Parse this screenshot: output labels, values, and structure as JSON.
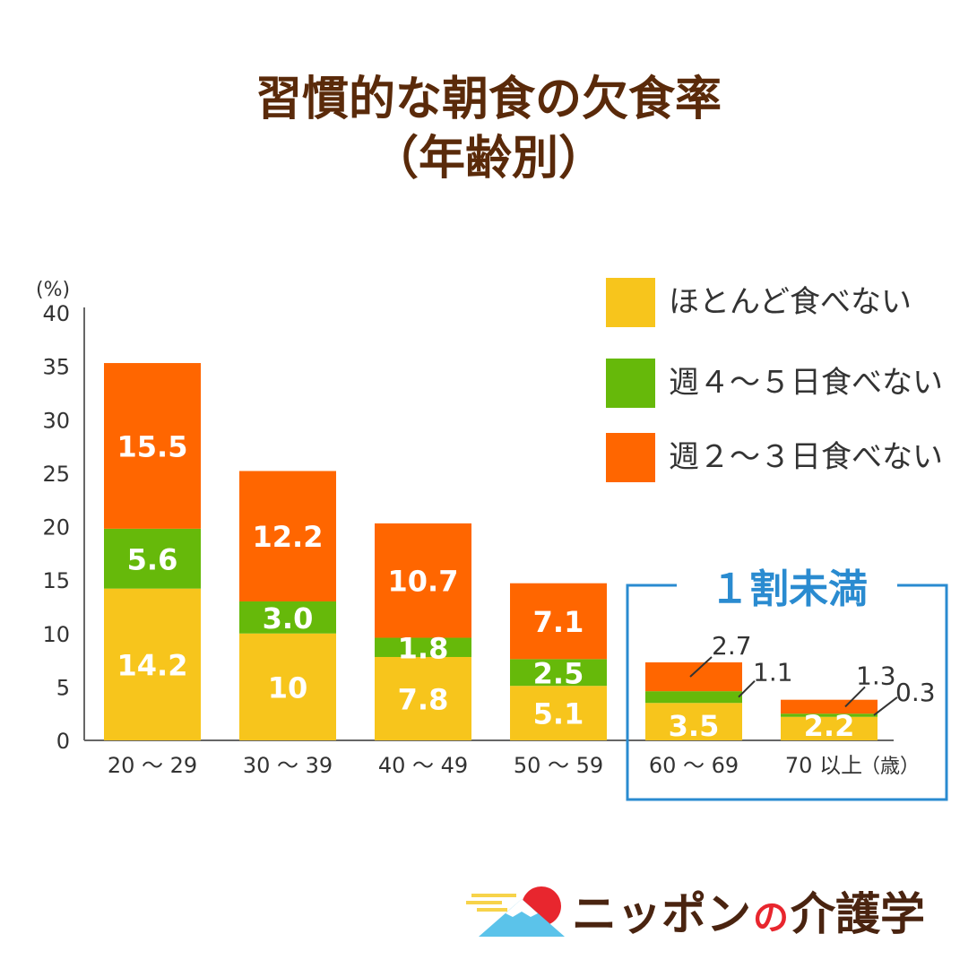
{
  "title": {
    "line1": "習慣的な朝食の欠食率",
    "line2": "（年齢別）"
  },
  "chart_data": {
    "type": "bar",
    "stacked": true,
    "y_unit": "(%)",
    "ylim": [
      0,
      40
    ],
    "yticks": [
      0,
      5,
      10,
      15,
      20,
      25,
      30,
      35,
      40
    ],
    "categories": [
      "20 ～ 29",
      "30 ～ 39",
      "40 ～ 49",
      "50 ～ 59",
      "60 ～ 69",
      "70 以上"
    ],
    "x_unit": "（歳）",
    "series": [
      {
        "name": "ほとんど食べない",
        "color": "#f7c51c",
        "values": [
          14.2,
          10,
          7.8,
          5.1,
          3.5,
          2.2
        ],
        "labels": [
          "14.2",
          "10",
          "7.8",
          "5.1",
          "3.5",
          "2.2"
        ]
      },
      {
        "name": "週４～５日食べない",
        "color": "#66b90a",
        "values": [
          5.6,
          3.0,
          1.8,
          2.5,
          1.1,
          0.3
        ],
        "labels": [
          "5.6",
          "3.0",
          "1.8",
          "2.5",
          "1.1",
          "0.3"
        ]
      },
      {
        "name": "週２～３日食べない",
        "color": "#ff6600",
        "values": [
          15.5,
          12.2,
          10.7,
          7.1,
          2.7,
          1.3
        ],
        "labels": [
          "15.5",
          "12.2",
          "10.7",
          "7.1",
          "2.7",
          "1.3"
        ]
      }
    ],
    "annotation": {
      "text": "１割未満",
      "color": "#2a8bd0"
    },
    "grid": false,
    "legend_position": "top-right"
  },
  "logo": {
    "prefix": "ニッポン",
    "particle": "の",
    "suffix": "介護学"
  }
}
